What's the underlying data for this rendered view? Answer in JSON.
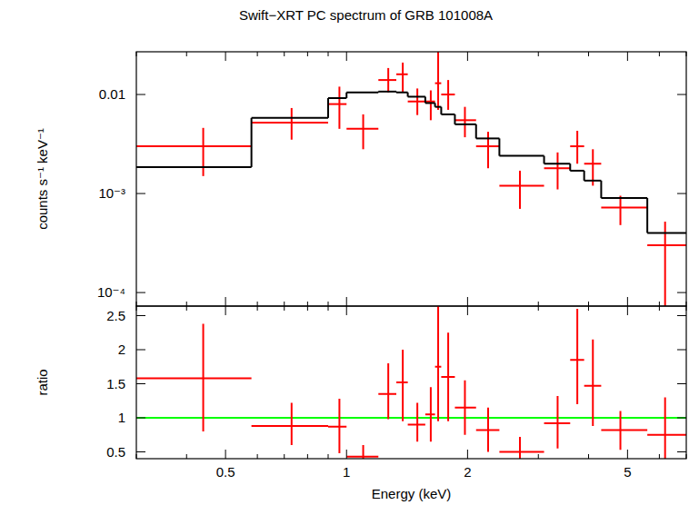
{
  "chart_data": [
    {
      "type": "scatter",
      "title": "Swift−XRT PC spectrum of GRB 101008A",
      "y_label": "counts s⁻¹ keV⁻¹",
      "log": true,
      "tick_labels": "y",
      "xlim": [
        0.3,
        7
      ],
      "ylim": [
        7.3e-05,
        0.027
      ],
      "xticks": [
        0.5,
        1,
        2,
        5
      ],
      "xminor": [
        0.3,
        0.4,
        0.6,
        0.7,
        0.8,
        0.9,
        3,
        4,
        6,
        7
      ],
      "yticks": [
        {
          "value": 0.0001,
          "label": "10⁻⁴"
        },
        {
          "value": 0.001,
          "label": "10⁻³"
        },
        0.01
      ],
      "x": [
        0.44,
        0.73,
        0.96,
        1.1,
        1.27,
        1.38,
        1.5,
        1.62,
        1.69,
        1.79,
        1.97,
        2.25,
        2.7,
        3.35,
        3.75,
        4.1,
        4.8,
        6.2
      ],
      "x_low": [
        0.3,
        0.58,
        0.9,
        1.0,
        1.2,
        1.33,
        1.42,
        1.57,
        1.66,
        1.72,
        1.86,
        2.1,
        2.4,
        3.1,
        3.6,
        3.9,
        4.3,
        5.6
      ],
      "x_high": [
        0.58,
        0.9,
        1.0,
        1.2,
        1.33,
        1.42,
        1.57,
        1.66,
        1.72,
        1.86,
        2.1,
        2.4,
        3.1,
        3.6,
        3.9,
        4.3,
        5.6,
        7
      ],
      "series": [
        {
          "type": "scatter",
          "color": "#ff0000",
          "values": [
            0.003,
            0.0052,
            0.008,
            0.0045,
            0.014,
            0.016,
            0.0085,
            0.0085,
            0.013,
            0.01,
            0.0055,
            0.003,
            0.0012,
            0.0018,
            0.003,
            0.002,
            0.00072,
            0.0003
          ],
          "y_low": [
            0.0015,
            0.0035,
            0.0045,
            0.0028,
            0.0105,
            0.0105,
            0.0062,
            0.0055,
            0.007,
            0.007,
            0.0037,
            0.0018,
            0.0007,
            0.0011,
            0.002,
            0.0012,
            0.00048,
            5e-05
          ],
          "y_high": [
            0.0046,
            0.0073,
            0.012,
            0.0063,
            0.0185,
            0.021,
            0.0115,
            0.011,
            0.027,
            0.014,
            0.0075,
            0.0042,
            0.0017,
            0.0026,
            0.0043,
            0.0028,
            0.00095,
            0.00052
          ]
        },
        {
          "type": "step",
          "color": "#000000",
          "values": [
            0.00185,
            0.0058,
            0.0092,
            0.0105,
            0.0107,
            0.0105,
            0.0095,
            0.0082,
            0.0075,
            0.0063,
            0.005,
            0.0036,
            0.0024,
            0.002,
            0.0017,
            0.00135,
            0.0009,
            0.0004
          ]
        }
      ]
    },
    {
      "type": "scatter",
      "x_label": "Energy (keV)",
      "y_label": "ratio",
      "log": "x",
      "xlim": [
        0.3,
        7
      ],
      "ylim": [
        0.4,
        2.64
      ],
      "xticks": [
        0.5,
        1,
        2,
        5
      ],
      "xminor": [
        0.3,
        0.4,
        0.6,
        0.7,
        0.8,
        0.9,
        3,
        4,
        6,
        7
      ],
      "yticks": [
        0.5,
        1,
        1.5,
        2,
        2.5
      ],
      "reference_line": {
        "value": 1,
        "color": "#00ff00"
      },
      "x": [
        0.44,
        0.73,
        0.96,
        1.1,
        1.27,
        1.38,
        1.5,
        1.62,
        1.69,
        1.79,
        1.97,
        2.25,
        2.7,
        3.35,
        3.75,
        4.1,
        4.8,
        6.2
      ],
      "x_low": [
        0.3,
        0.58,
        0.9,
        1.0,
        1.2,
        1.33,
        1.42,
        1.57,
        1.66,
        1.72,
        1.86,
        2.1,
        2.4,
        3.1,
        3.6,
        3.9,
        4.3,
        5.6
      ],
      "x_high": [
        0.58,
        0.9,
        1.0,
        1.2,
        1.33,
        1.42,
        1.57,
        1.66,
        1.72,
        1.86,
        2.1,
        2.4,
        3.1,
        3.6,
        3.9,
        4.3,
        5.6,
        7
      ],
      "series": [
        {
          "type": "scatter",
          "color": "#ff0000",
          "values": [
            1.58,
            0.88,
            0.87,
            0.43,
            1.35,
            1.52,
            0.9,
            1.05,
            1.75,
            1.6,
            1.15,
            0.82,
            0.5,
            0.92,
            1.85,
            1.47,
            0.82,
            0.75
          ],
          "y_low": [
            0.8,
            0.6,
            0.48,
            0.3,
            0.98,
            0.95,
            0.65,
            0.65,
            0.95,
            0.95,
            0.75,
            0.5,
            0.28,
            0.55,
            1.2,
            0.88,
            0.53,
            0.2
          ],
          "y_high": [
            2.38,
            1.22,
            1.28,
            0.6,
            1.8,
            2.0,
            1.22,
            1.45,
            2.65,
            2.25,
            1.55,
            1.15,
            0.72,
            1.32,
            2.6,
            2.15,
            1.1,
            1.3
          ]
        }
      ]
    }
  ]
}
